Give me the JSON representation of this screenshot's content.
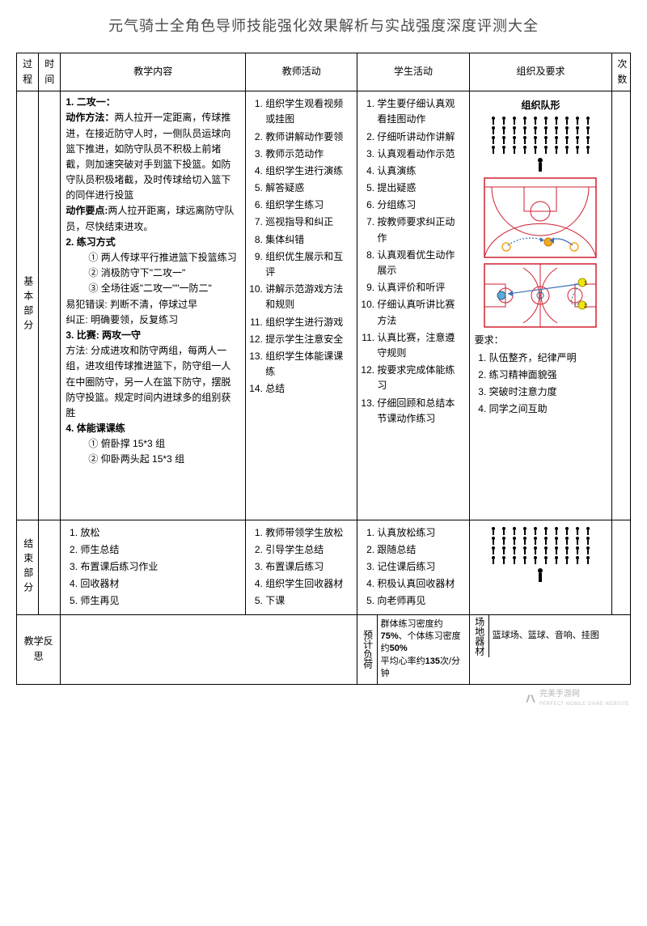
{
  "title": "元气骑士全角色导师技能强化效果解析与实战强度深度评测大全",
  "headers": {
    "process": "过程",
    "time": "时间",
    "content": "教学内容",
    "teacher": "教师活动",
    "student": "学生活动",
    "org": "组织及要求",
    "count": "次数"
  },
  "sections": {
    "main": {
      "label": "基本部分",
      "content": {
        "h1": "1. 二攻一：",
        "h1_method_lbl": "动作方法：",
        "h1_method": "两人拉开一定距离，传球推进，在接近防守人时，一侧队员运球向篮下推进，如防守队员不积极上前堵截，则加速突破对手到篮下投篮。如防守队员积极堵截，及时传球给切入篮下的同伴进行投篮",
        "h1_points_lbl": "动作要点:",
        "h1_points": "两人拉开距离，球远离防守队员，尽快结束进攻。",
        "h2": "2. 练习方式",
        "h2_items": [
          "① 两人传球平行推进篮下投篮练习",
          "② 消极防守下\"二攻一\"",
          "③ 全场往返\"二攻一\"\"一防二\""
        ],
        "err_lbl": "易犯错误:",
        "err": "判断不清，停球过早",
        "fix_lbl": "纠正:",
        "fix": "明确要领，反复练习",
        "h3": "3. 比赛: 两攻一守",
        "h3_method_lbl": "方法:",
        "h3_method": "分成进攻和防守两组，每两人一组，进攻组传球推进篮下，防守组一人在中圈防守，另一人在篮下防守，摆脱防守投篮。规定时间内进球多的组别获胜",
        "h4": "4. 体能课课练",
        "h4_items": [
          "① 俯卧撑 15*3 组",
          "② 仰卧两头起 15*3 组"
        ]
      },
      "teacher_acts": [
        "组织学生观看视频或挂图",
        "教师讲解动作要领",
        "教师示范动作",
        "组织学生进行演练",
        "解答疑惑",
        "组织学生练习",
        "巡视指导和纠正",
        "集体纠错",
        "组织优生展示和互评",
        "讲解示范游戏方法和规则",
        "组织学生进行游戏",
        "提示学生注意安全",
        "组织学生体能课课练",
        "总结"
      ],
      "student_acts": [
        "学生要仔细认真观看挂图动作",
        "仔细听讲动作讲解",
        "认真观看动作示范",
        "认真演练",
        "提出疑惑",
        "分组练习",
        "按教师要求纠正动作",
        "认真观看优生动作展示",
        "认真评价和听评",
        "仔细认真听讲比赛方法",
        "认真比赛，注意遵守规则",
        "按要求完成体能练习",
        "仔细回顾和总结本节课动作练习"
      ],
      "org": {
        "formation_title": "组织队形",
        "req_label": "要求：",
        "reqs": [
          "队伍整齐，纪律严明",
          "练习精神面貌强",
          "突破时注意力度",
          "同学之间互助"
        ]
      }
    },
    "end": {
      "label": "结束部分",
      "content_items": [
        "放松",
        "师生总结",
        "布置课后练习作业",
        "回收器材",
        "师生再见"
      ],
      "teacher_acts": [
        "教师带领学生放松",
        "引导学生总结",
        "布置课后练习",
        "组织学生回收器材",
        "下课"
      ],
      "student_acts": [
        "认真放松练习",
        "跟随总结",
        "记住课后练习",
        "积极认真回收器材",
        "向老师再见"
      ]
    },
    "footer": {
      "reflect": "教学反思",
      "load_lbl": "预计负荷",
      "load_text": "群体练习密度约75%、个体练习密度约50%\n平均心率约135次/分钟",
      "load_bold1": "75%",
      "load_bold2": "50%",
      "load_bold3": "135",
      "equip_lbl": "场地器材",
      "equip_text": "篮球场、篮球、音响、挂图"
    }
  },
  "watermark": {
    "brand": "完美手游网",
    "sub": "PERFECT MOBILE GAME WEBSITE"
  },
  "colors": {
    "court_line": "#d02030",
    "court_line2": "#c01828",
    "arrow_blue": "#3a6fb5",
    "dot_orange": "#f5a623",
    "dot_yellow": "#f1e60a",
    "dot_blue": "#5ca9d6"
  }
}
